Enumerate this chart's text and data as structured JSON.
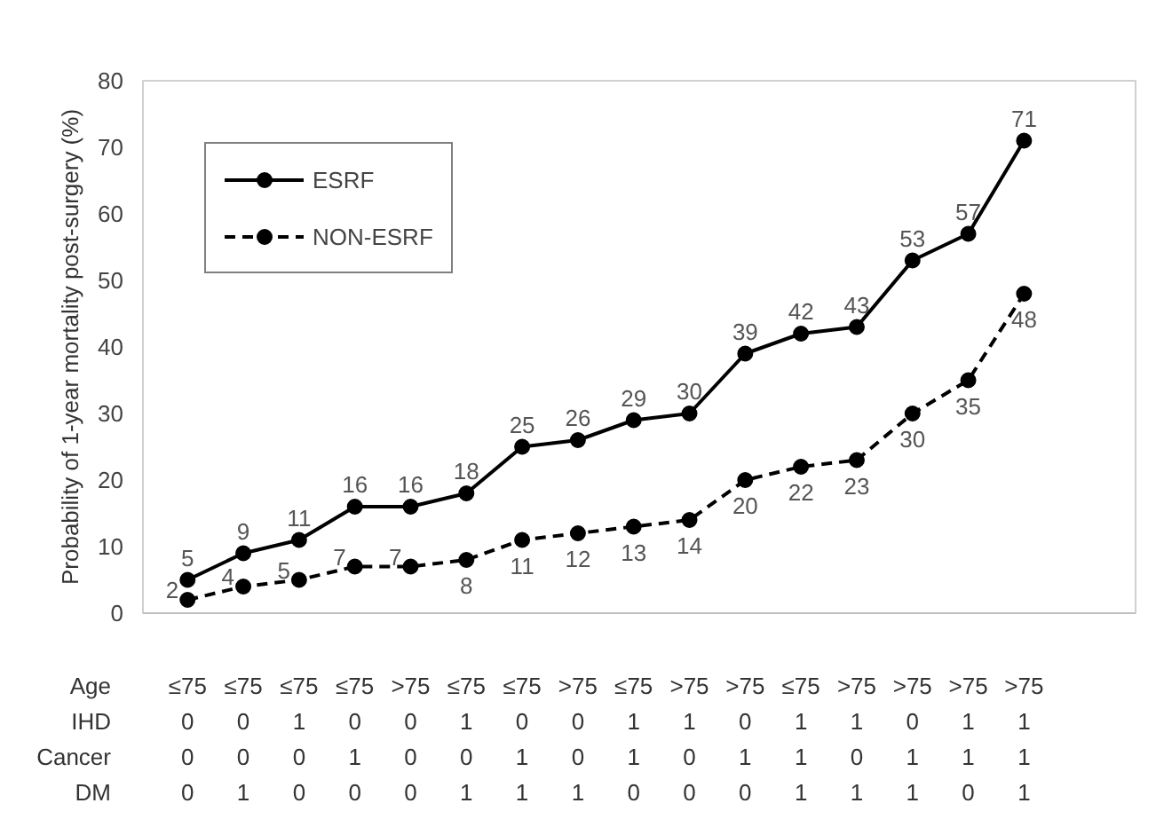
{
  "chart_data": {
    "type": "line",
    "ylabel": "Probability of 1-year mortality post-surgery (%)",
    "categories": [
      "≤75",
      "≤75",
      "≤75",
      "≤75",
      ">75",
      "≤75",
      "≤75",
      ">75",
      "≤75",
      ">75",
      ">75",
      "≤75",
      ">75",
      ">75",
      ">75",
      ">75"
    ],
    "series": [
      {
        "name": "ESRF",
        "color": "#000000",
        "line_style": "solid",
        "values": [
          5,
          9,
          11,
          16,
          16,
          18,
          25,
          26,
          29,
          30,
          39,
          42,
          43,
          53,
          57,
          71
        ]
      },
      {
        "name": "NON-ESRF",
        "color": "#000000",
        "line_style": "dashed",
        "values": [
          2,
          4,
          5,
          7,
          7,
          8,
          11,
          12,
          13,
          14,
          20,
          22,
          23,
          30,
          35,
          48
        ]
      }
    ],
    "ylim": [
      0,
      80
    ],
    "yticks": [
      0,
      10,
      20,
      30,
      40,
      50,
      60,
      70,
      80
    ],
    "marker": "circle",
    "data_labels": true,
    "legend": "top left",
    "grid": false,
    "annotations": [
      "Age",
      "IHD 0 0 1 0 0 1 0 0 1 1 0 1 1 0 1 1",
      "Cancer 0 0 0 1 0 0 1 0 1 0 1 1 0 1 1 1",
      "DM 0 1 0 0 0 1 1 1 0 0 0 1 1 1 0 1"
    ]
  }
}
